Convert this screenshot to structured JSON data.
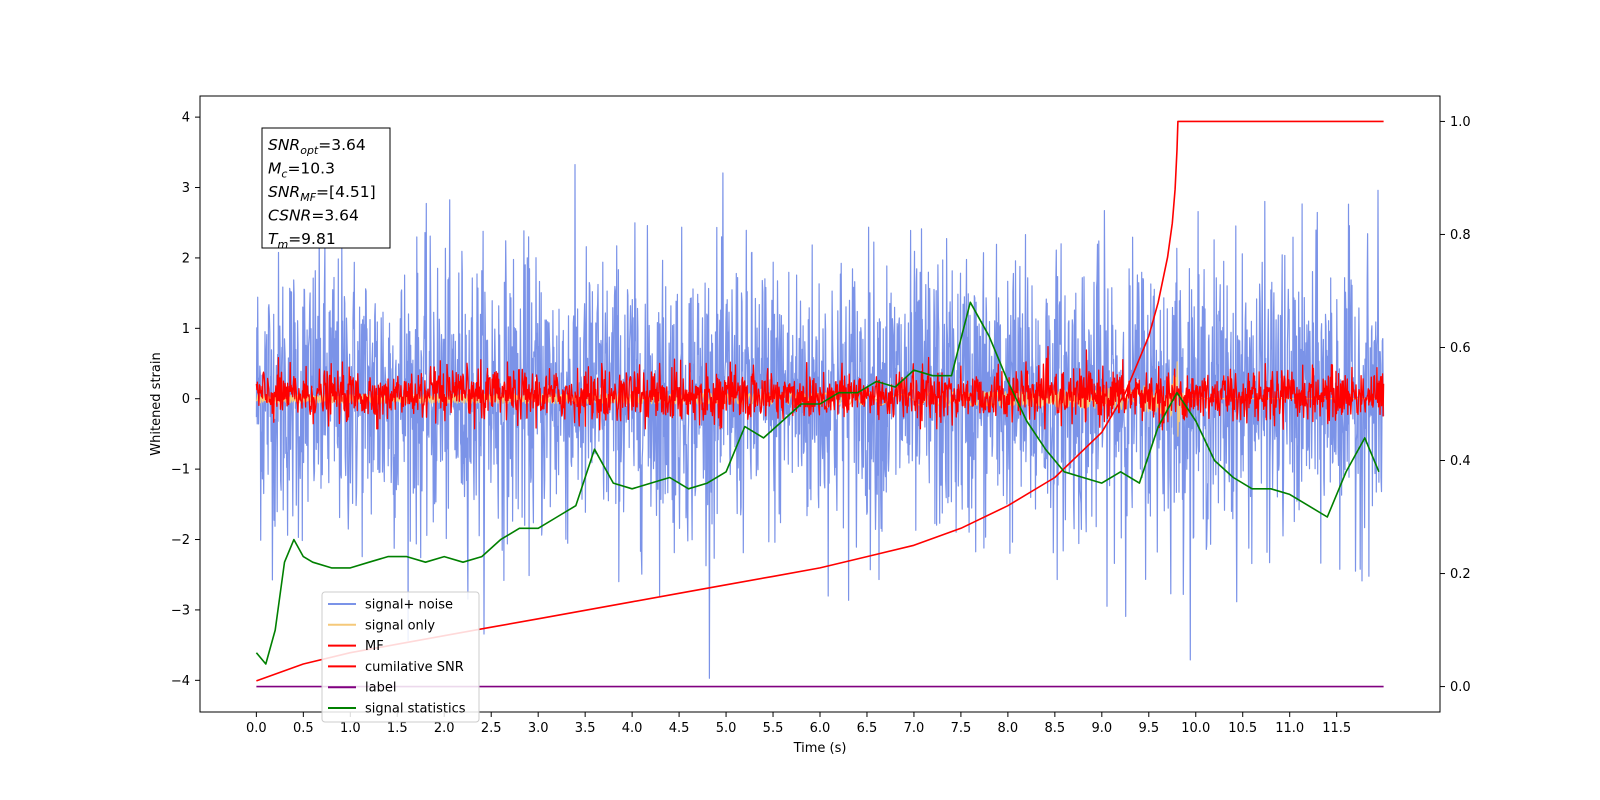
{
  "chart_data": {
    "type": "line",
    "xlabel": "Time (s)",
    "ylabel": "Whitened strain",
    "xlim": [
      -0.6,
      12.6
    ],
    "ylim": [
      -4.45,
      4.3
    ],
    "y2lim": [
      -0.045,
      1.045
    ],
    "x_ticks": [
      "0.0",
      "0.5",
      "1.0",
      "1.5",
      "2.0",
      "2.5",
      "3.0",
      "3.5",
      "4.0",
      "4.5",
      "5.0",
      "5.5",
      "6.0",
      "6.5",
      "7.0",
      "7.5",
      "8.0",
      "8.5",
      "9.0",
      "9.5",
      "10.0",
      "10.5",
      "11.0",
      "11.5"
    ],
    "y_ticks": [
      "4",
      "3",
      "2",
      "1",
      "0",
      "−1",
      "−2",
      "−3",
      "−4"
    ],
    "y2_ticks": [
      "1.0",
      "0.8",
      "0.6",
      "0.4",
      "0.2",
      "0.0"
    ],
    "info_box": [
      {
        "base": "SNR",
        "sub": "opt",
        "rest": "=3.64"
      },
      {
        "base": "M",
        "sub": "c",
        "rest": "=10.3"
      },
      {
        "base": "SNR",
        "sub": "MF",
        "rest": "=[4.51]"
      },
      {
        "base": "CSNR",
        "sub": "",
        "rest": "=3.64"
      },
      {
        "base": "T",
        "sub": "m",
        "rest": "=9.81"
      }
    ],
    "legend_position": "lower-left",
    "series": [
      {
        "name": "signal+ noise",
        "color": "#7b93e8",
        "axis": "left",
        "kind": "noise",
        "mean": 0.05,
        "std": 1.0,
        "range": [
          -4.15,
          3.95
        ],
        "x_range": [
          0.0,
          12.0
        ]
      },
      {
        "name": "signal only",
        "color": "#f5c97a",
        "axis": "left",
        "kind": "chirp",
        "peak": 0.65,
        "merger_time": 9.81
      },
      {
        "name": "MF",
        "color": "#ff0000",
        "axis": "left",
        "kind": "noise",
        "mean": 0.05,
        "std": 0.18,
        "range": [
          -0.45,
          0.95
        ],
        "x_range": [
          0.0,
          12.0
        ]
      },
      {
        "name": "cumilative SNR",
        "color": "#ff0000",
        "axis": "right",
        "x": [
          0.0,
          0.5,
          1.0,
          1.5,
          2.0,
          2.5,
          3.0,
          3.5,
          4.0,
          4.5,
          5.0,
          5.5,
          6.0,
          6.5,
          7.0,
          7.5,
          8.0,
          8.5,
          9.0,
          9.25,
          9.5,
          9.6,
          9.7,
          9.75,
          9.78,
          9.8,
          9.81,
          12.0
        ],
        "y": [
          0.01,
          0.04,
          0.06,
          0.075,
          0.09,
          0.105,
          0.12,
          0.135,
          0.15,
          0.165,
          0.18,
          0.195,
          0.21,
          0.23,
          0.25,
          0.28,
          0.32,
          0.37,
          0.45,
          0.52,
          0.62,
          0.68,
          0.76,
          0.82,
          0.88,
          0.95,
          1.0,
          1.0
        ]
      },
      {
        "name": "label",
        "color": "#800080",
        "axis": "right",
        "x": [
          0.0,
          12.0
        ],
        "y": [
          0.0,
          0.0
        ]
      },
      {
        "name": "signal statistics",
        "color": "#008000",
        "axis": "right",
        "x": [
          0.0,
          0.1,
          0.2,
          0.3,
          0.4,
          0.5,
          0.6,
          0.8,
          1.0,
          1.2,
          1.4,
          1.6,
          1.8,
          2.0,
          2.2,
          2.4,
          2.6,
          2.8,
          3.0,
          3.2,
          3.4,
          3.6,
          3.8,
          4.0,
          4.2,
          4.4,
          4.6,
          4.8,
          5.0,
          5.2,
          5.4,
          5.6,
          5.8,
          6.0,
          6.2,
          6.4,
          6.6,
          6.8,
          7.0,
          7.2,
          7.4,
          7.6,
          7.8,
          8.0,
          8.2,
          8.4,
          8.6,
          8.8,
          9.0,
          9.2,
          9.4,
          9.6,
          9.8,
          10.0,
          10.2,
          10.4,
          10.6,
          10.8,
          11.0,
          11.2,
          11.4,
          11.6,
          11.8,
          11.95
        ],
        "y": [
          0.06,
          0.04,
          0.1,
          0.22,
          0.26,
          0.23,
          0.22,
          0.21,
          0.21,
          0.22,
          0.23,
          0.23,
          0.22,
          0.23,
          0.22,
          0.23,
          0.26,
          0.28,
          0.28,
          0.3,
          0.32,
          0.42,
          0.36,
          0.35,
          0.36,
          0.37,
          0.35,
          0.36,
          0.38,
          0.46,
          0.44,
          0.47,
          0.5,
          0.5,
          0.52,
          0.52,
          0.54,
          0.53,
          0.56,
          0.55,
          0.55,
          0.68,
          0.62,
          0.54,
          0.47,
          0.42,
          0.38,
          0.37,
          0.36,
          0.38,
          0.36,
          0.46,
          0.52,
          0.47,
          0.4,
          0.37,
          0.35,
          0.35,
          0.34,
          0.32,
          0.3,
          0.38,
          0.44,
          0.38
        ]
      }
    ]
  }
}
